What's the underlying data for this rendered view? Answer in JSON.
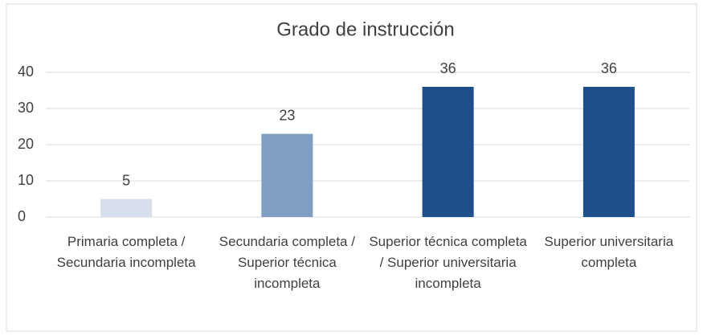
{
  "chart_data": {
    "type": "bar",
    "title": "Grado de instrucción",
    "categories": [
      "Primaria completa / Secundaria incompleta",
      "Secundaria completa / Superior técnica incompleta",
      "Superior técnica completa / Superior universitaria incompleta",
      "Superior universitaria completa"
    ],
    "values": [
      5,
      23,
      36,
      36
    ],
    "colors": [
      "#d6dfeb",
      "#7f9fc2",
      "#1f4e8c",
      "#1f4e8c"
    ],
    "ylim": [
      0,
      40
    ],
    "yticks": [
      0,
      10,
      20,
      30,
      40
    ],
    "grid": true
  }
}
